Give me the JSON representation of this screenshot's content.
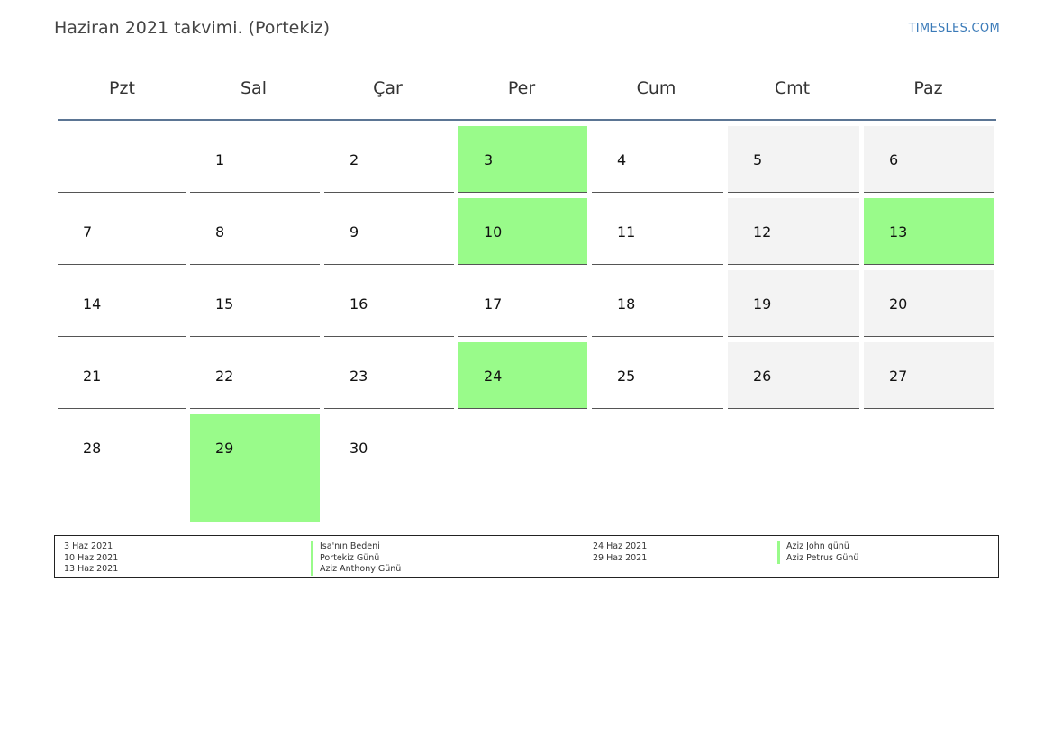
{
  "header": {
    "title": "Haziran 2021 takvimi. (Portekiz)",
    "brand": "TIMESLES.COM"
  },
  "calendar": {
    "weekdays": [
      "Pzt",
      "Sal",
      "Çar",
      "Per",
      "Cum",
      "Cmt",
      "Paz"
    ],
    "weeks": [
      [
        "",
        "1",
        "2",
        "3",
        "4",
        "5",
        "6"
      ],
      [
        "7",
        "8",
        "9",
        "10",
        "11",
        "12",
        "13"
      ],
      [
        "14",
        "15",
        "16",
        "17",
        "18",
        "19",
        "20"
      ],
      [
        "21",
        "22",
        "23",
        "24",
        "25",
        "26",
        "27"
      ],
      [
        "28",
        "29",
        "30",
        "",
        "",
        "",
        ""
      ]
    ],
    "holiday_days": [
      "3",
      "10",
      "13",
      "24",
      "29"
    ],
    "colors": {
      "holiday": "#99fb8a",
      "weekend": "#f3f3f3",
      "header_rule": "#5b7594"
    }
  },
  "legend": {
    "left": [
      {
        "date": "3 Haz 2021",
        "name": "İsa'nın Bedeni"
      },
      {
        "date": "10 Haz 2021",
        "name": "Portekiz Günü"
      },
      {
        "date": "13 Haz 2021",
        "name": "Aziz Anthony Günü"
      }
    ],
    "right": [
      {
        "date": "24 Haz 2021",
        "name": "Aziz John günü"
      },
      {
        "date": "29 Haz 2021",
        "name": "Aziz Petrus Günü"
      }
    ]
  }
}
